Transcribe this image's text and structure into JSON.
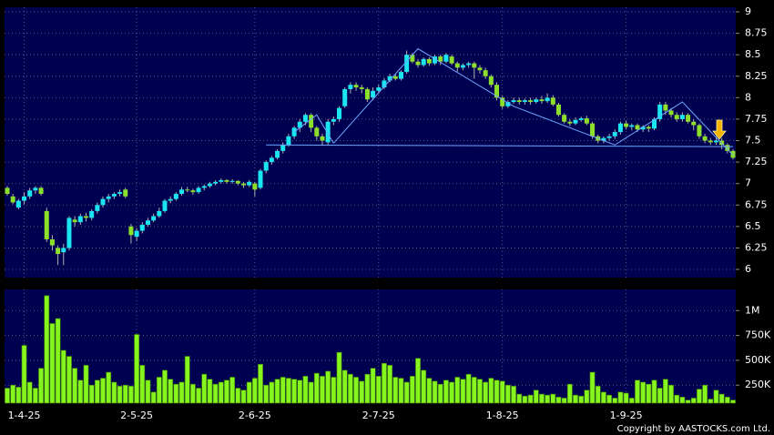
{
  "chart_data": {
    "type": "candlestick",
    "categories": [
      null,
      null,
      null,
      "1-4-25",
      null,
      null,
      null,
      null,
      null,
      null,
      null,
      null,
      null,
      null,
      null,
      null,
      null,
      null,
      null,
      null,
      null,
      null,
      null,
      "2-5-25",
      null,
      null,
      null,
      null,
      null,
      null,
      null,
      null,
      null,
      null,
      null,
      null,
      null,
      null,
      null,
      null,
      null,
      null,
      null,
      null,
      "2-6-25",
      null,
      null,
      null,
      null,
      null,
      null,
      null,
      null,
      null,
      null,
      null,
      null,
      null,
      null,
      null,
      null,
      null,
      null,
      null,
      null,
      null,
      "2-7-25",
      null,
      null,
      null,
      null,
      null,
      null,
      null,
      null,
      null,
      null,
      null,
      null,
      null,
      null,
      null,
      null,
      null,
      null,
      null,
      null,
      null,
      "1-8-25",
      null,
      null,
      null,
      null,
      null,
      null,
      null,
      null,
      null,
      null,
      null,
      null,
      null,
      null,
      null,
      null,
      null,
      null,
      null,
      null,
      null,
      "1-9-25",
      null,
      null,
      null,
      null,
      null,
      null,
      null,
      null,
      null,
      null,
      null,
      null,
      null,
      null,
      null,
      null,
      null,
      null,
      null
    ],
    "open": [
      6.95,
      6.85,
      6.72,
      6.8,
      6.85,
      6.92,
      6.95,
      6.68,
      6.35,
      6.25,
      6.2,
      6.25,
      6.58,
      6.55,
      6.62,
      6.6,
      6.68,
      6.75,
      6.82,
      6.85,
      6.88,
      6.93,
      6.5,
      6.38,
      6.45,
      6.52,
      6.57,
      6.62,
      6.68,
      6.8,
      6.82,
      6.88,
      6.93,
      6.92,
      6.9,
      6.95,
      6.97,
      7.0,
      7.02,
      7.04,
      7.02,
      7.03,
      7.0,
      6.98,
      7.0,
      6.95,
      7.15,
      7.25,
      7.3,
      7.38,
      7.45,
      7.55,
      7.65,
      7.72,
      7.8,
      7.65,
      7.55,
      7.48,
      7.72,
      7.75,
      7.9,
      8.1,
      8.15,
      8.12,
      8.1,
      8.0,
      8.08,
      8.12,
      8.2,
      8.25,
      8.22,
      8.3,
      8.5,
      8.42,
      8.38,
      8.45,
      8.4,
      8.48,
      8.42,
      8.48,
      8.4,
      8.35,
      8.38,
      8.4,
      8.35,
      8.32,
      8.25,
      8.15,
      8.0,
      7.9,
      7.95,
      7.97,
      7.95,
      7.97,
      7.95,
      7.98,
      7.96,
      8.0,
      7.92,
      7.8,
      7.72,
      7.7,
      7.74,
      7.76,
      7.7,
      7.55,
      7.5,
      7.53,
      7.55,
      7.6,
      7.7,
      7.66,
      7.68,
      7.63,
      7.66,
      7.64,
      7.75,
      7.92,
      7.85,
      7.8,
      7.75,
      7.8,
      7.72,
      7.68,
      7.55,
      7.5,
      7.48,
      7.5,
      7.45,
      7.38
    ],
    "high": [
      6.97,
      6.88,
      6.82,
      6.9,
      6.95,
      6.97,
      6.97,
      6.72,
      6.4,
      6.28,
      6.3,
      6.62,
      6.62,
      6.65,
      6.66,
      6.7,
      6.78,
      6.85,
      6.88,
      6.9,
      6.93,
      6.95,
      6.53,
      6.48,
      6.55,
      6.6,
      6.65,
      6.72,
      6.82,
      6.85,
      6.9,
      6.96,
      6.96,
      6.94,
      6.97,
      6.99,
      7.02,
      7.04,
      7.06,
      7.05,
      7.05,
      7.04,
      7.02,
      7.04,
      7.02,
      7.17,
      7.27,
      7.32,
      7.4,
      7.48,
      7.58,
      7.67,
      7.75,
      7.82,
      7.82,
      7.67,
      7.58,
      7.75,
      7.78,
      7.9,
      8.12,
      8.18,
      8.18,
      8.15,
      8.12,
      8.12,
      8.15,
      8.23,
      8.28,
      8.28,
      8.32,
      8.55,
      8.52,
      8.45,
      8.47,
      8.47,
      8.5,
      8.5,
      8.52,
      8.5,
      8.42,
      8.4,
      8.42,
      8.42,
      8.38,
      8.35,
      8.27,
      8.18,
      8.02,
      7.97,
      8.0,
      8.0,
      7.99,
      8.0,
      8.0,
      8.02,
      8.05,
      8.03,
      7.94,
      7.82,
      7.75,
      7.77,
      7.78,
      7.79,
      7.72,
      7.57,
      7.55,
      7.58,
      7.63,
      7.72,
      7.73,
      7.7,
      7.7,
      7.68,
      7.68,
      7.77,
      7.95,
      7.95,
      7.88,
      7.83,
      7.83,
      7.82,
      7.75,
      7.7,
      7.58,
      7.53,
      7.55,
      7.53,
      7.47,
      7.4
    ],
    "low": [
      6.86,
      6.76,
      6.7,
      6.76,
      6.82,
      6.88,
      6.86,
      6.32,
      6.22,
      6.05,
      6.05,
      6.22,
      6.5,
      6.52,
      6.56,
      6.57,
      6.65,
      6.72,
      6.78,
      6.82,
      6.85,
      6.83,
      6.3,
      6.33,
      6.42,
      6.5,
      6.55,
      6.6,
      6.66,
      6.77,
      6.8,
      6.86,
      6.9,
      6.87,
      6.88,
      6.92,
      6.95,
      6.98,
      7.0,
      7.0,
      7.0,
      6.98,
      6.95,
      6.96,
      6.85,
      6.93,
      7.12,
      7.22,
      7.28,
      7.35,
      7.43,
      7.52,
      7.6,
      7.68,
      7.6,
      7.5,
      7.45,
      7.45,
      7.68,
      7.72,
      7.88,
      8.05,
      8.08,
      8.05,
      7.95,
      7.97,
      8.05,
      8.1,
      8.18,
      8.2,
      8.2,
      8.28,
      8.4,
      8.35,
      8.36,
      8.37,
      8.38,
      8.38,
      8.4,
      8.38,
      8.3,
      8.32,
      8.35,
      8.22,
      8.28,
      8.22,
      8.12,
      7.97,
      7.87,
      7.88,
      7.93,
      7.92,
      7.92,
      7.92,
      7.93,
      7.93,
      7.94,
      7.9,
      7.78,
      7.7,
      7.67,
      7.68,
      7.72,
      7.68,
      7.52,
      7.47,
      7.47,
      7.5,
      7.52,
      7.57,
      7.63,
      7.62,
      7.6,
      7.6,
      7.6,
      7.62,
      7.72,
      7.8,
      7.77,
      7.72,
      7.72,
      7.7,
      7.62,
      7.52,
      7.47,
      7.45,
      7.45,
      7.4,
      7.35,
      7.28
    ],
    "close": [
      6.88,
      6.78,
      6.8,
      6.85,
      6.92,
      6.95,
      6.88,
      6.35,
      6.28,
      6.18,
      6.25,
      6.6,
      6.55,
      6.62,
      6.6,
      6.68,
      6.75,
      6.82,
      6.85,
      6.88,
      6.9,
      6.85,
      6.4,
      6.45,
      6.52,
      6.57,
      6.62,
      6.68,
      6.8,
      6.82,
      6.88,
      6.93,
      6.92,
      6.9,
      6.95,
      6.97,
      7.0,
      7.02,
      7.04,
      7.02,
      7.03,
      7.0,
      6.98,
      7.02,
      6.93,
      7.15,
      7.25,
      7.3,
      7.38,
      7.45,
      7.55,
      7.65,
      7.72,
      7.8,
      7.65,
      7.55,
      7.5,
      7.72,
      7.75,
      7.88,
      8.1,
      8.15,
      8.12,
      8.1,
      7.98,
      8.08,
      8.12,
      8.2,
      8.25,
      8.22,
      8.3,
      8.5,
      8.42,
      8.38,
      8.45,
      8.4,
      8.48,
      8.42,
      8.5,
      8.4,
      8.35,
      8.38,
      8.4,
      8.35,
      8.32,
      8.25,
      8.15,
      8.0,
      7.9,
      7.95,
      7.97,
      7.95,
      7.97,
      7.95,
      7.98,
      7.96,
      8.0,
      7.92,
      7.8,
      7.72,
      7.7,
      7.74,
      7.76,
      7.7,
      7.55,
      7.5,
      7.53,
      7.55,
      7.6,
      7.7,
      7.66,
      7.68,
      7.63,
      7.66,
      7.64,
      7.75,
      7.92,
      7.85,
      7.8,
      7.75,
      7.8,
      7.72,
      7.68,
      7.55,
      7.5,
      7.48,
      7.5,
      7.45,
      7.38,
      7.3
    ],
    "volume": [
      220000,
      250000,
      230000,
      650000,
      280000,
      220000,
      420000,
      1150000,
      870000,
      920000,
      600000,
      540000,
      420000,
      300000,
      450000,
      250000,
      300000,
      320000,
      380000,
      280000,
      240000,
      250000,
      240000,
      760000,
      450000,
      300000,
      180000,
      330000,
      400000,
      310000,
      260000,
      280000,
      540000,
      260000,
      220000,
      360000,
      310000,
      260000,
      280000,
      300000,
      330000,
      220000,
      200000,
      280000,
      320000,
      460000,
      250000,
      280000,
      310000,
      330000,
      320000,
      310000,
      300000,
      340000,
      280000,
      370000,
      340000,
      390000,
      330000,
      580000,
      400000,
      360000,
      330000,
      290000,
      360000,
      420000,
      340000,
      470000,
      450000,
      330000,
      320000,
      280000,
      340000,
      520000,
      400000,
      320000,
      290000,
      260000,
      300000,
      280000,
      330000,
      310000,
      360000,
      330000,
      310000,
      280000,
      320000,
      300000,
      290000,
      250000,
      240000,
      160000,
      140000,
      150000,
      200000,
      160000,
      150000,
      160000,
      130000,
      120000,
      260000,
      150000,
      140000,
      200000,
      380000,
      240000,
      180000,
      150000,
      120000,
      180000,
      170000,
      120000,
      300000,
      280000,
      260000,
      300000,
      220000,
      310000,
      250000,
      150000,
      130000,
      100000,
      120000,
      210000,
      250000,
      110000,
      200000,
      160000,
      130000,
      100000
    ],
    "up_color": "#19e6f0",
    "down_color": "#8ce02a",
    "volume_color": "#86f51e",
    "ylim": [
      5.905,
      9.053
    ],
    "yticks": [
      6,
      6.25,
      6.5,
      6.75,
      7,
      7.25,
      7.5,
      7.75,
      8,
      8.25,
      8.5,
      8.75,
      9
    ],
    "volume_ylim": [
      69000,
      1213000
    ],
    "volume_yticks": [
      {
        "value": 250000,
        "label": "250K"
      },
      {
        "value": 500000,
        "label": "500K"
      },
      {
        "value": 750000,
        "label": "750K"
      },
      {
        "value": 1000000,
        "label": "1M"
      }
    ],
    "grid": true,
    "trendlines": [
      {
        "x": [
          46,
          129
        ],
        "y": [
          7.45,
          7.43
        ]
      },
      {
        "x": [
          51,
          55,
          58
        ],
        "y": [
          7.6,
          7.8,
          7.47
        ]
      },
      {
        "x": [
          58,
          73,
          90,
          108,
          120,
          129
        ],
        "y": [
          7.47,
          8.57,
          7.9,
          7.45,
          7.95,
          7.33
        ]
      }
    ],
    "copyright": "Copyright by AASTOCKS.com Ltd."
  }
}
